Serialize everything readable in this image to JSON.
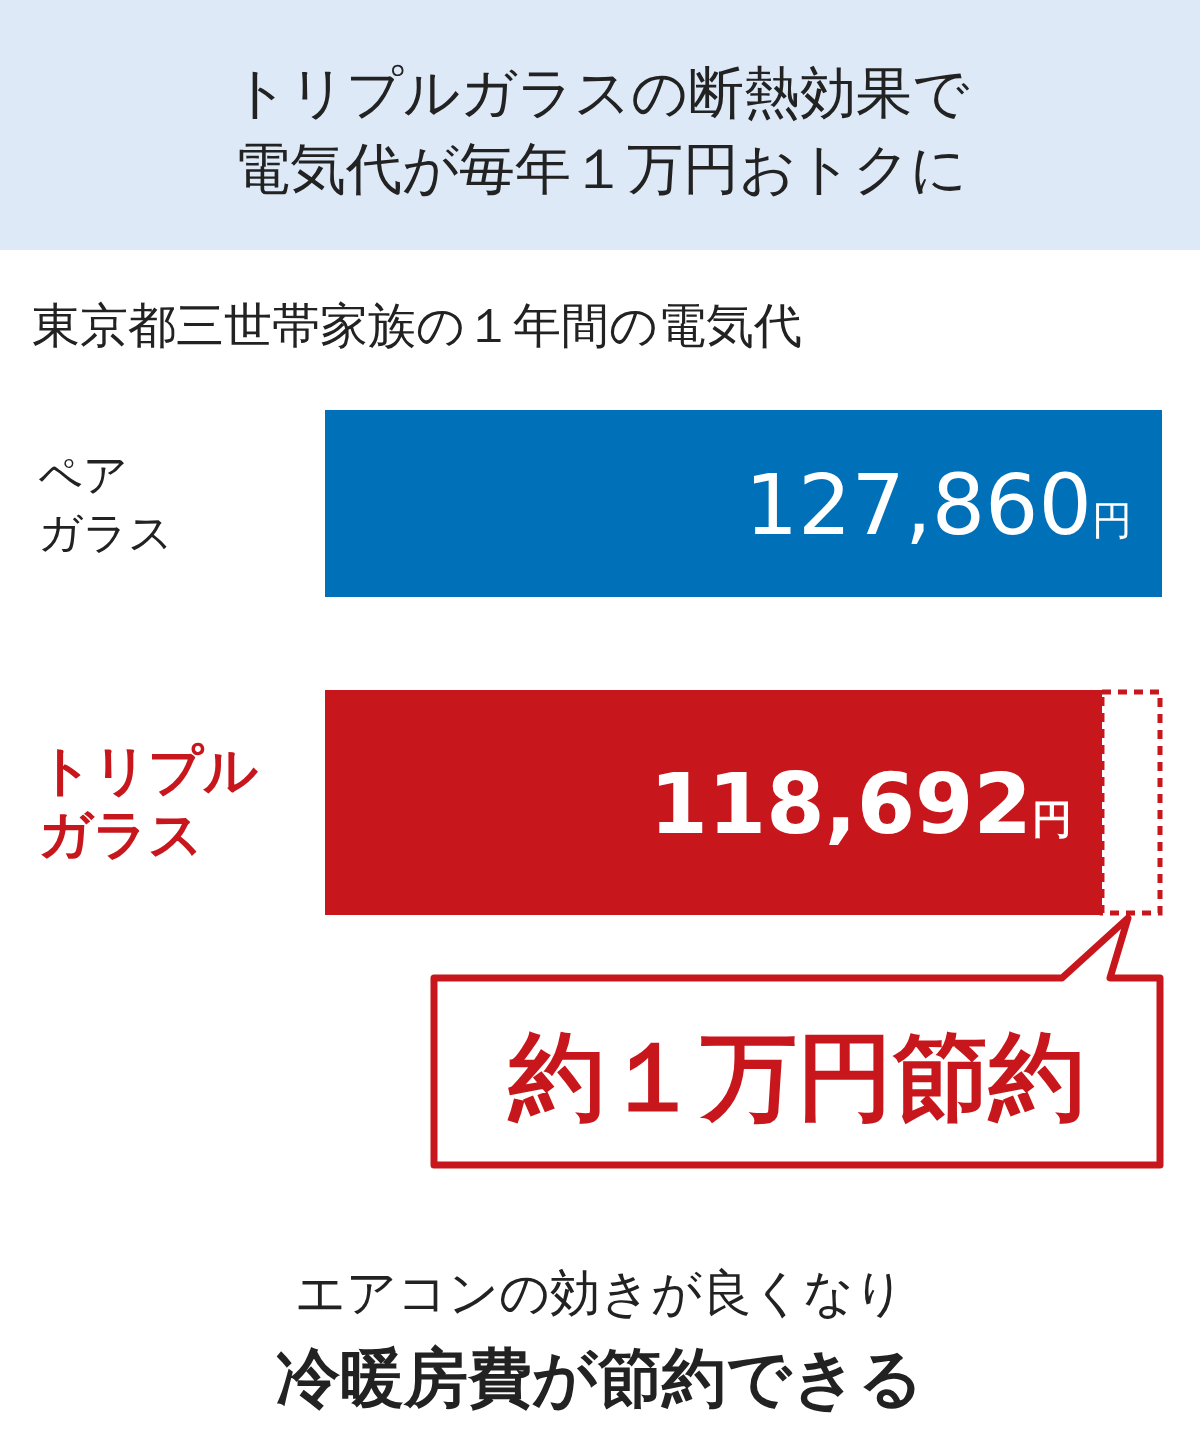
{
  "chart_data": {
    "type": "bar",
    "orientation": "horizontal",
    "title": "トリプルガラスの断熱効果で電気代が毎年１万円おトクに",
    "subtitle": "東京都三世帯家族の１年間の電気代",
    "categories": [
      "ペアガラス",
      "トリプルガラス"
    ],
    "values": [
      127860,
      118692
    ],
    "colors": [
      "#0071b9",
      "#c8161d"
    ],
    "value_labels": [
      "127,860円",
      "118,692円"
    ],
    "annotations": [
      "約１万円節約",
      "エアコンの効きが良くなり",
      "冷暖房費が節約できる"
    ]
  }
}
